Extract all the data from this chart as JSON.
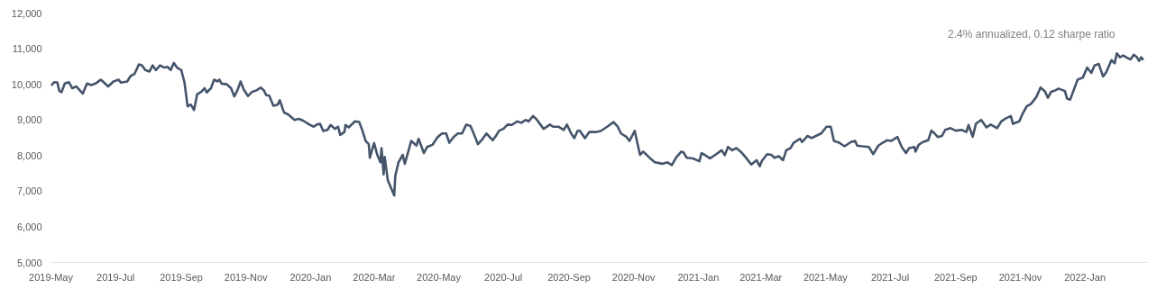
{
  "chart_data": {
    "type": "line",
    "annotations": [
      "2.4% annualized, 0.12 sharpe ratio"
    ],
    "xlim": [
      "2019-05-01",
      "2022-03-01"
    ],
    "ylim": [
      5000,
      12000
    ],
    "xticks": [
      {
        "value": "2019-05-01",
        "label": "2019-May"
      },
      {
        "value": "2019-07-01",
        "label": "2019-Jul"
      },
      {
        "value": "2019-09-01",
        "label": "2019-Sep"
      },
      {
        "value": "2019-11-01",
        "label": "2019-Nov"
      },
      {
        "value": "2020-01-01",
        "label": "2020-Jan"
      },
      {
        "value": "2020-03-01",
        "label": "2020-Mar"
      },
      {
        "value": "2020-05-01",
        "label": "2020-May"
      },
      {
        "value": "2020-07-01",
        "label": "2020-Jul"
      },
      {
        "value": "2020-09-01",
        "label": "2020-Sep"
      },
      {
        "value": "2020-11-01",
        "label": "2020-Nov"
      },
      {
        "value": "2021-01-01",
        "label": "2021-Jan"
      },
      {
        "value": "2021-03-01",
        "label": "2021-Mar"
      },
      {
        "value": "2021-05-01",
        "label": "2021-May"
      },
      {
        "value": "2021-07-01",
        "label": "2021-Jul"
      },
      {
        "value": "2021-09-01",
        "label": "2021-Sep"
      },
      {
        "value": "2021-11-01",
        "label": "2021-Nov"
      },
      {
        "value": "2022-01-01",
        "label": "2022-Jan"
      }
    ],
    "yticks": [
      {
        "value": 5000,
        "label": "5,000"
      },
      {
        "value": 6000,
        "label": "6,000"
      },
      {
        "value": 7000,
        "label": "7,000"
      },
      {
        "value": 8000,
        "label": "8,000"
      },
      {
        "value": 9000,
        "label": "9,000"
      },
      {
        "value": 10000,
        "label": "10,000"
      },
      {
        "value": 11000,
        "label": "11,000"
      },
      {
        "value": 12000,
        "label": "12,000"
      }
    ],
    "grid": false,
    "marker": "none",
    "line_style": "solid",
    "series": [
      {
        "color": "#44546a",
        "x": [
          "2019-05-01",
          "2019-05-04",
          "2019-05-07",
          "2019-05-09",
          "2019-05-11",
          "2019-05-14",
          "2019-05-18",
          "2019-05-21",
          "2019-05-25",
          "2019-05-31",
          "2019-06-04",
          "2019-06-08",
          "2019-06-12",
          "2019-06-17",
          "2019-06-19",
          "2019-06-24",
          "2019-06-29",
          "2019-07-04",
          "2019-07-06",
          "2019-07-12",
          "2019-07-15",
          "2019-07-19",
          "2019-07-23",
          "2019-07-26",
          "2019-07-29",
          "2019-08-02",
          "2019-08-05",
          "2019-08-08",
          "2019-08-12",
          "2019-08-16",
          "2019-08-19",
          "2019-08-22",
          "2019-08-25",
          "2019-08-28",
          "2019-09-01",
          "2019-09-04",
          "2019-09-07",
          "2019-09-10",
          "2019-09-13",
          "2019-09-16",
          "2019-09-20",
          "2019-09-23",
          "2019-09-25",
          "2019-09-29",
          "2019-10-02",
          "2019-10-05",
          "2019-10-07",
          "2019-10-09",
          "2019-10-14",
          "2019-10-18",
          "2019-10-21",
          "2019-10-24",
          "2019-10-27",
          "2019-10-30",
          "2019-11-03",
          "2019-11-07",
          "2019-11-11",
          "2019-11-15",
          "2019-11-18",
          "2019-11-20",
          "2019-11-23",
          "2019-11-27",
          "2019-12-01",
          "2019-12-03",
          "2019-12-07",
          "2019-12-11",
          "2019-12-17",
          "2019-12-21",
          "2019-12-25",
          "2019-12-31",
          "2020-01-04",
          "2020-01-07",
          "2020-01-10",
          "2020-01-13",
          "2020-01-17",
          "2020-01-20",
          "2020-01-24",
          "2020-01-27",
          "2020-01-29",
          "2020-02-02",
          "2020-02-03",
          "2020-02-06",
          "2020-02-12",
          "2020-02-16",
          "2020-02-19",
          "2020-02-22",
          "2020-02-25",
          "2020-02-26",
          "2020-03-01",
          "2020-03-04",
          "2020-03-07",
          "2020-03-08",
          "2020-03-10",
          "2020-03-11",
          "2020-03-14",
          "2020-03-17",
          "2020-03-20",
          "2020-03-21",
          "2020-03-24",
          "2020-03-28",
          "2020-03-30",
          "2020-04-03",
          "2020-04-05",
          "2020-04-10",
          "2020-04-12",
          "2020-04-17",
          "2020-04-20",
          "2020-04-25",
          "2020-04-30",
          "2020-05-04",
          "2020-05-08",
          "2020-05-11",
          "2020-05-15",
          "2020-05-19",
          "2020-05-23",
          "2020-05-27",
          "2020-05-31",
          "2020-06-03",
          "2020-06-07",
          "2020-06-11",
          "2020-06-15",
          "2020-06-21",
          "2020-06-24",
          "2020-06-27",
          "2020-07-01",
          "2020-07-05",
          "2020-07-09",
          "2020-07-14",
          "2020-07-18",
          "2020-07-22",
          "2020-07-25",
          "2020-07-29",
          "2020-08-01",
          "2020-08-05",
          "2020-08-08",
          "2020-08-14",
          "2020-08-17",
          "2020-08-22",
          "2020-08-27",
          "2020-08-30",
          "2020-09-03",
          "2020-09-06",
          "2020-09-09",
          "2020-09-11",
          "2020-09-16",
          "2020-09-20",
          "2020-09-26",
          "2020-10-01",
          "2020-10-07",
          "2020-10-13",
          "2020-10-17",
          "2020-10-20",
          "2020-10-25",
          "2020-10-28",
          "2020-11-02",
          "2020-11-07",
          "2020-11-10",
          "2020-11-16",
          "2020-11-21",
          "2020-11-28",
          "2020-12-03",
          "2020-12-07",
          "2020-12-11",
          "2020-12-16",
          "2020-12-18",
          "2020-12-21",
          "2020-12-27",
          "2021-01-02",
          "2021-01-04",
          "2021-01-07",
          "2021-01-12",
          "2021-01-17",
          "2021-01-23",
          "2021-01-26",
          "2021-01-29",
          "2021-02-02",
          "2021-02-06",
          "2021-02-10",
          "2021-02-15",
          "2021-02-20",
          "2021-02-25",
          "2021-02-28",
          "2021-03-02",
          "2021-03-07",
          "2021-03-11",
          "2021-03-14",
          "2021-03-18",
          "2021-03-22",
          "2021-03-25",
          "2021-03-29",
          "2021-04-01",
          "2021-04-07",
          "2021-04-09",
          "2021-04-14",
          "2021-04-18",
          "2021-04-22",
          "2021-04-27",
          "2021-05-02",
          "2021-05-06",
          "2021-05-09",
          "2021-05-14",
          "2021-05-19",
          "2021-05-25",
          "2021-05-29",
          "2021-05-31",
          "2021-06-05",
          "2021-06-11",
          "2021-06-15",
          "2021-06-20",
          "2021-06-24",
          "2021-06-28",
          "2021-07-02",
          "2021-07-08",
          "2021-07-12",
          "2021-07-16",
          "2021-07-19",
          "2021-07-24",
          "2021-07-25",
          "2021-07-28",
          "2021-08-01",
          "2021-08-06",
          "2021-08-09",
          "2021-08-12",
          "2021-08-15",
          "2021-08-19",
          "2021-08-22",
          "2021-08-27",
          "2021-09-01",
          "2021-09-07",
          "2021-09-11",
          "2021-09-13",
          "2021-09-17",
          "2021-09-20",
          "2021-09-25",
          "2021-09-30",
          "2021-10-04",
          "2021-10-10",
          "2021-10-14",
          "2021-10-18",
          "2021-10-23",
          "2021-10-25",
          "2021-10-31",
          "2021-11-03",
          "2021-11-07",
          "2021-11-11",
          "2021-11-16",
          "2021-11-20",
          "2021-11-24",
          "2021-11-27",
          "2021-11-30",
          "2021-12-04",
          "2021-12-07",
          "2021-12-13",
          "2021-12-15",
          "2021-12-18",
          "2021-12-21",
          "2021-12-25",
          "2021-12-30",
          "2022-01-03",
          "2022-01-07",
          "2022-01-10",
          "2022-01-14",
          "2022-01-18",
          "2022-01-21",
          "2022-01-26",
          "2022-01-29",
          "2022-01-31",
          "2022-02-03",
          "2022-02-06",
          "2022-02-10",
          "2022-02-13",
          "2022-02-16",
          "2022-02-19",
          "2022-02-21",
          "2022-02-23",
          "2022-02-25"
        ],
        "values": [
          9960,
          10060,
          10050,
          9810,
          9780,
          10020,
          10060,
          9890,
          9940,
          9740,
          10020,
          9980,
          10020,
          10130,
          10080,
          9940,
          10080,
          10130,
          10050,
          10080,
          10230,
          10300,
          10560,
          10530,
          10400,
          10360,
          10530,
          10400,
          10530,
          10470,
          10490,
          10400,
          10600,
          10470,
          10400,
          10060,
          9380,
          9430,
          9280,
          9720,
          9790,
          9890,
          9770,
          9890,
          10130,
          10080,
          10130,
          10020,
          10000,
          9890,
          9660,
          9830,
          10080,
          9850,
          9670,
          9790,
          9830,
          9910,
          9830,
          9700,
          9680,
          9400,
          9430,
          9550,
          9210,
          9150,
          9000,
          9030,
          8980,
          8870,
          8810,
          8870,
          8890,
          8690,
          8720,
          8860,
          8750,
          8810,
          8580,
          8660,
          8860,
          8790,
          8960,
          8940,
          8700,
          8410,
          8320,
          7940,
          8350,
          8020,
          7810,
          8210,
          7470,
          7960,
          7300,
          7090,
          6880,
          7430,
          7810,
          8020,
          7770,
          8190,
          8410,
          8280,
          8470,
          8070,
          8240,
          8300,
          8520,
          8620,
          8620,
          8360,
          8520,
          8620,
          8620,
          8870,
          8830,
          8620,
          8320,
          8450,
          8620,
          8430,
          8550,
          8700,
          8750,
          8870,
          8860,
          8960,
          8920,
          9000,
          8960,
          9110,
          9030,
          8870,
          8750,
          8870,
          8810,
          8810,
          8720,
          8870,
          8620,
          8490,
          8690,
          8700,
          8490,
          8660,
          8660,
          8690,
          8810,
          8940,
          8810,
          8620,
          8530,
          8410,
          8690,
          8020,
          8110,
          7940,
          7810,
          7770,
          7810,
          7730,
          7940,
          8110,
          8090,
          7940,
          7920,
          7840,
          8070,
          8020,
          7920,
          8020,
          8150,
          8010,
          8240,
          8150,
          8210,
          8110,
          7940,
          7750,
          7870,
          7700,
          7850,
          8040,
          8020,
          7940,
          7980,
          7870,
          8150,
          8210,
          8360,
          8470,
          8380,
          8550,
          8490,
          8550,
          8620,
          8810,
          8810,
          8410,
          8360,
          8260,
          8380,
          8410,
          8280,
          8260,
          8240,
          8040,
          8280,
          8360,
          8430,
          8410,
          8520,
          8240,
          8070,
          8210,
          8240,
          8110,
          8300,
          8380,
          8430,
          8700,
          8620,
          8520,
          8550,
          8720,
          8770,
          8700,
          8720,
          8660,
          8860,
          8530,
          8890,
          9000,
          8790,
          8870,
          8770,
          8960,
          9040,
          9110,
          8890,
          8960,
          9170,
          9380,
          9450,
          9640,
          9910,
          9810,
          9620,
          9790,
          9830,
          9880,
          9810,
          9600,
          9570,
          9810,
          10130,
          10190,
          10470,
          10320,
          10530,
          10570,
          10220,
          10340,
          10680,
          10590,
          10870,
          10760,
          10810,
          10740,
          10700,
          10830,
          10760,
          10660,
          10760,
          10680
        ]
      }
    ]
  }
}
